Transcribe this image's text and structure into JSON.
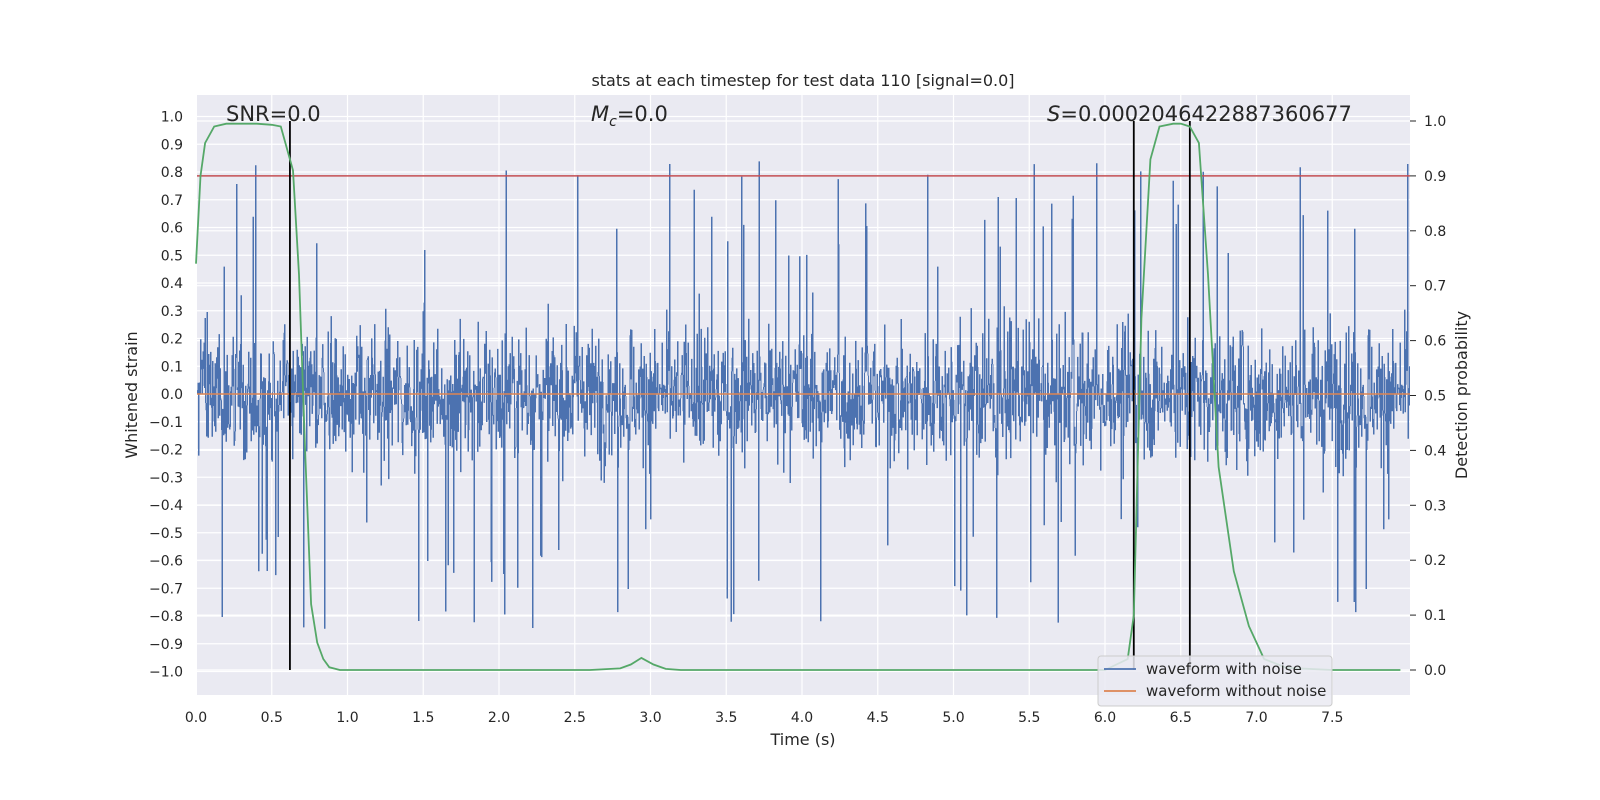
{
  "chart_data": {
    "type": "line",
    "title": "stats at each timestep for test data 110 [signal=0.0]",
    "xlabel": "Time (s)",
    "ylabel": "Whitened strain",
    "y2label": "Detection probability",
    "xlim": [
      0.0,
      8.0
    ],
    "ylim": [
      -1.1,
      1.1
    ],
    "y2lim": [
      -0.05,
      1.05
    ],
    "xticks": [
      "0.0",
      "0.5",
      "1.0",
      "1.5",
      "2.0",
      "2.5",
      "3.0",
      "3.5",
      "4.0",
      "4.5",
      "5.0",
      "5.5",
      "6.0",
      "6.5",
      "7.0",
      "7.5"
    ],
    "yticks": [
      "1.0",
      "0.9",
      "0.8",
      "0.7",
      "0.6",
      "0.5",
      "0.4",
      "0.3",
      "0.2",
      "0.1",
      "0.0",
      "−0.1",
      "−0.2",
      "−0.3",
      "−0.4",
      "−0.5",
      "−0.6",
      "−0.7",
      "−0.8",
      "−0.9",
      "−1.0"
    ],
    "y2ticks": [
      "1.0",
      "0.9",
      "0.8",
      "0.7",
      "0.6",
      "0.5",
      "0.4",
      "0.3",
      "0.2",
      "0.1",
      "0.0"
    ],
    "grid": true,
    "legend_position": "lower-right",
    "annotations": {
      "snr_text": "SNR=0.0",
      "mc_main": "M",
      "mc_sub": "c",
      "mc_rest": "=0.0",
      "s_main": "S",
      "s_rest": "=0.0002046422887360677"
    },
    "series": [
      {
        "name": "waveform with noise",
        "color": "#4c72b0",
        "description_envelope": "noise",
        "typical_peak": [
          -0.85,
          0.85
        ]
      },
      {
        "name": "waveform without noise",
        "color": "#dd8452",
        "value": 0.0
      },
      {
        "name": "",
        "color": "#55a868",
        "axis": "right",
        "x": [
          0.0,
          0.03,
          0.06,
          0.12,
          0.2,
          0.3,
          0.4,
          0.5,
          0.56,
          0.64,
          0.68,
          0.72,
          0.76,
          0.8,
          0.84,
          0.88,
          0.95,
          1.2,
          2.0,
          2.6,
          2.8,
          2.87,
          2.94,
          3.02,
          3.1,
          3.2,
          4.0,
          5.0,
          6.0,
          6.15,
          6.19,
          6.24,
          6.3,
          6.36,
          6.45,
          6.5,
          6.56,
          6.62,
          6.68,
          6.75,
          6.85,
          6.95,
          7.05,
          7.2,
          7.5,
          7.95
        ],
        "y": [
          0.74,
          0.9,
          0.96,
          0.99,
          0.995,
          0.995,
          0.995,
          0.993,
          0.99,
          0.91,
          0.72,
          0.4,
          0.12,
          0.05,
          0.02,
          0.005,
          0.0,
          0.0,
          0.0,
          0.0,
          0.003,
          0.01,
          0.022,
          0.01,
          0.002,
          0.0,
          0.0,
          0.0,
          0.0,
          0.02,
          0.1,
          0.64,
          0.93,
          0.99,
          0.995,
          0.995,
          0.99,
          0.96,
          0.72,
          0.37,
          0.18,
          0.08,
          0.02,
          0.004,
          0.0,
          0.0
        ]
      }
    ],
    "threshold_line": {
      "value": 0.9,
      "axis": "right",
      "color": "#c44e52"
    },
    "vertical_lines": [
      0.62,
      6.19,
      6.56
    ]
  }
}
